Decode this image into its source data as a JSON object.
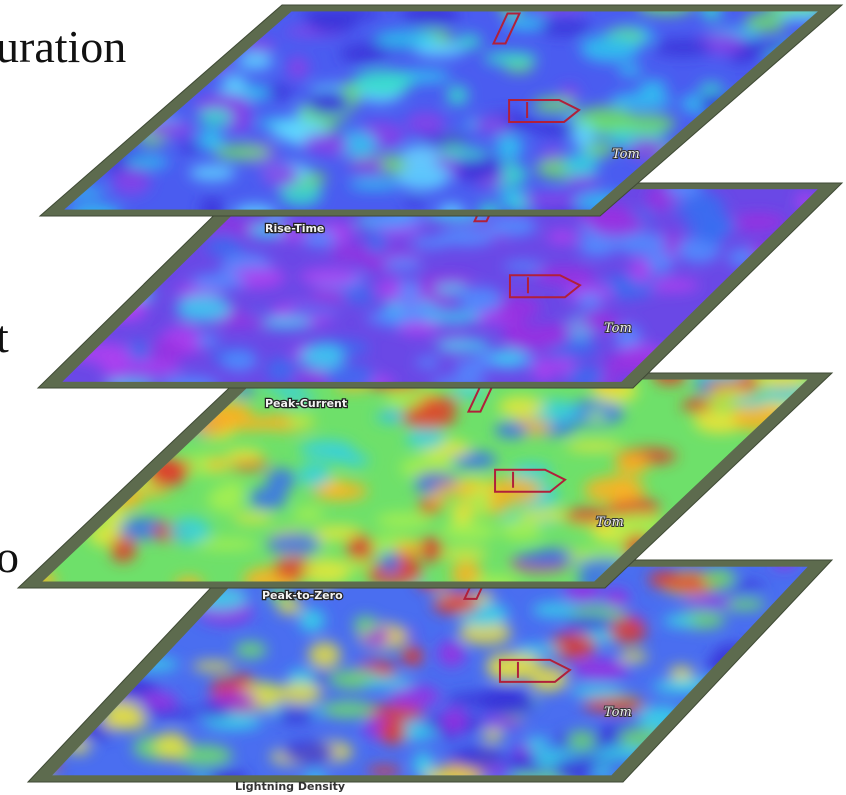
{
  "side_text": [
    "uration",
    "t",
    "o"
  ],
  "layers": [
    {
      "label": "Rise-Time",
      "marker": "Tom"
    },
    {
      "label": "Peak-Current",
      "marker": "Tom"
    },
    {
      "label": "Peak-to-Zero",
      "marker": "Tom"
    },
    {
      "label": "Lightning Density",
      "marker": "Tom"
    }
  ]
}
